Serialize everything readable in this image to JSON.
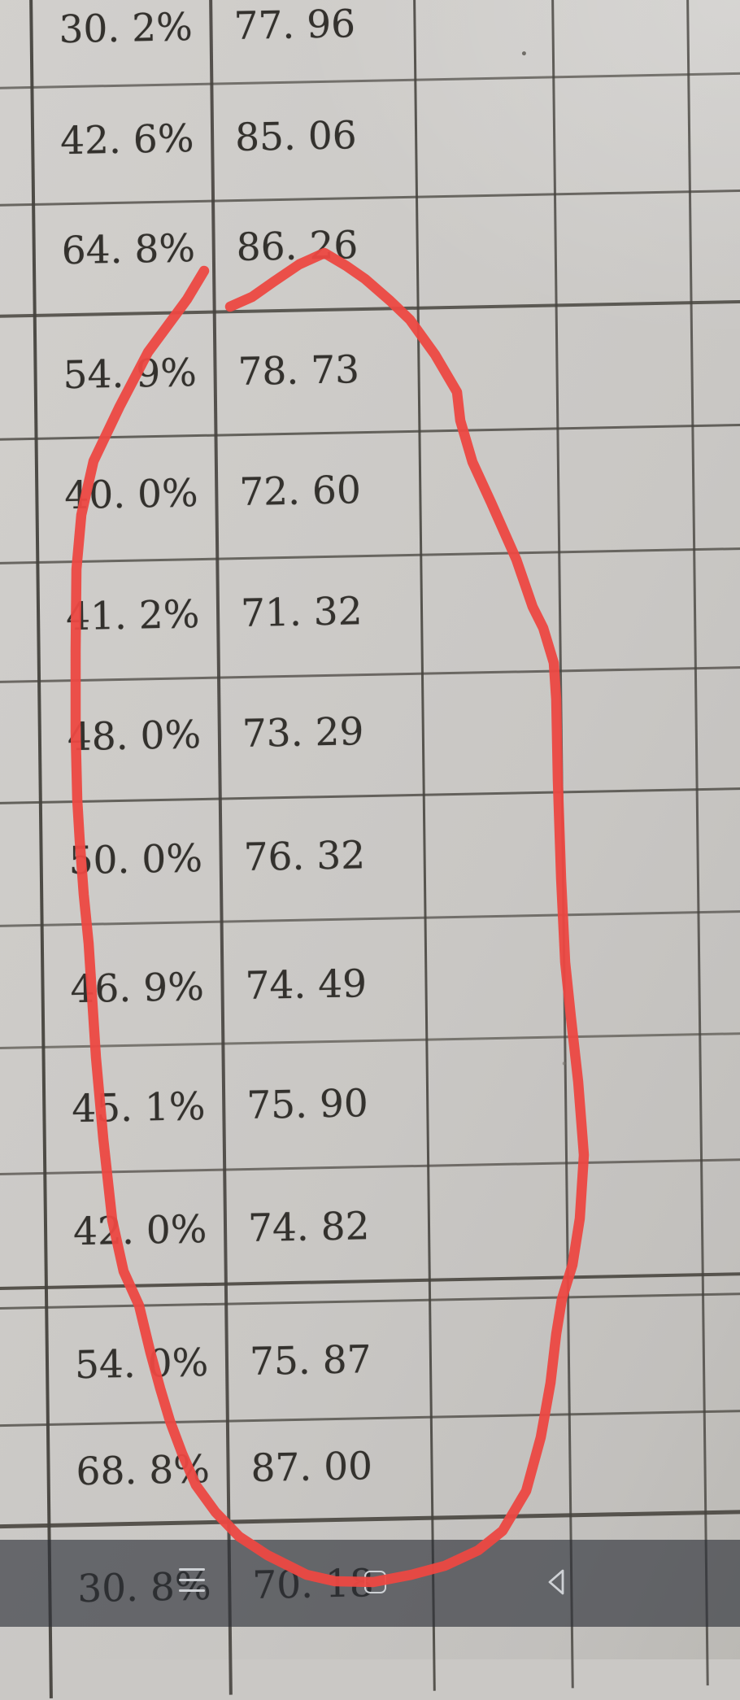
{
  "document": {
    "description": "photographed printed table on paper, two filled columns and empty grid columns",
    "rows": [
      {
        "percent": "30. 2%",
        "score": "77. 96"
      },
      {
        "percent": "42. 6%",
        "score": "85. 06"
      },
      {
        "percent": "64. 8%",
        "score": "86. 26"
      },
      {
        "percent": "54. 9%",
        "score": "78. 73"
      },
      {
        "percent": "40. 0%",
        "score": "72. 60"
      },
      {
        "percent": "41. 2%",
        "score": "71. 32"
      },
      {
        "percent": "48. 0%",
        "score": "73. 29"
      },
      {
        "percent": "50. 0%",
        "score": "76. 32"
      },
      {
        "percent": "46. 9%",
        "score": "74. 49"
      },
      {
        "percent": "45. 1%",
        "score": "75. 90"
      },
      {
        "percent": "42. 0%",
        "score": "74. 82"
      },
      {
        "percent": "54. 0%",
        "score": "75. 87"
      },
      {
        "percent": "68. 8%",
        "score": "87. 00"
      },
      {
        "percent": "30. 8%",
        "score": "70. 18"
      }
    ]
  },
  "annotation": {
    "shape": "hand-drawn red loop circling the score column values",
    "color": "#ec4842"
  },
  "navigation_bar": {
    "icons": [
      "menu-icon",
      "recents-icon",
      "back-icon"
    ]
  },
  "colors": {
    "paper": "#cac8c5",
    "grid_line": "#4a4742",
    "text": "#33312d",
    "nav_overlay": "rgba(42,46,54,0.63)",
    "icon": "#ced1d5",
    "annotation_red": "#ec4842"
  }
}
